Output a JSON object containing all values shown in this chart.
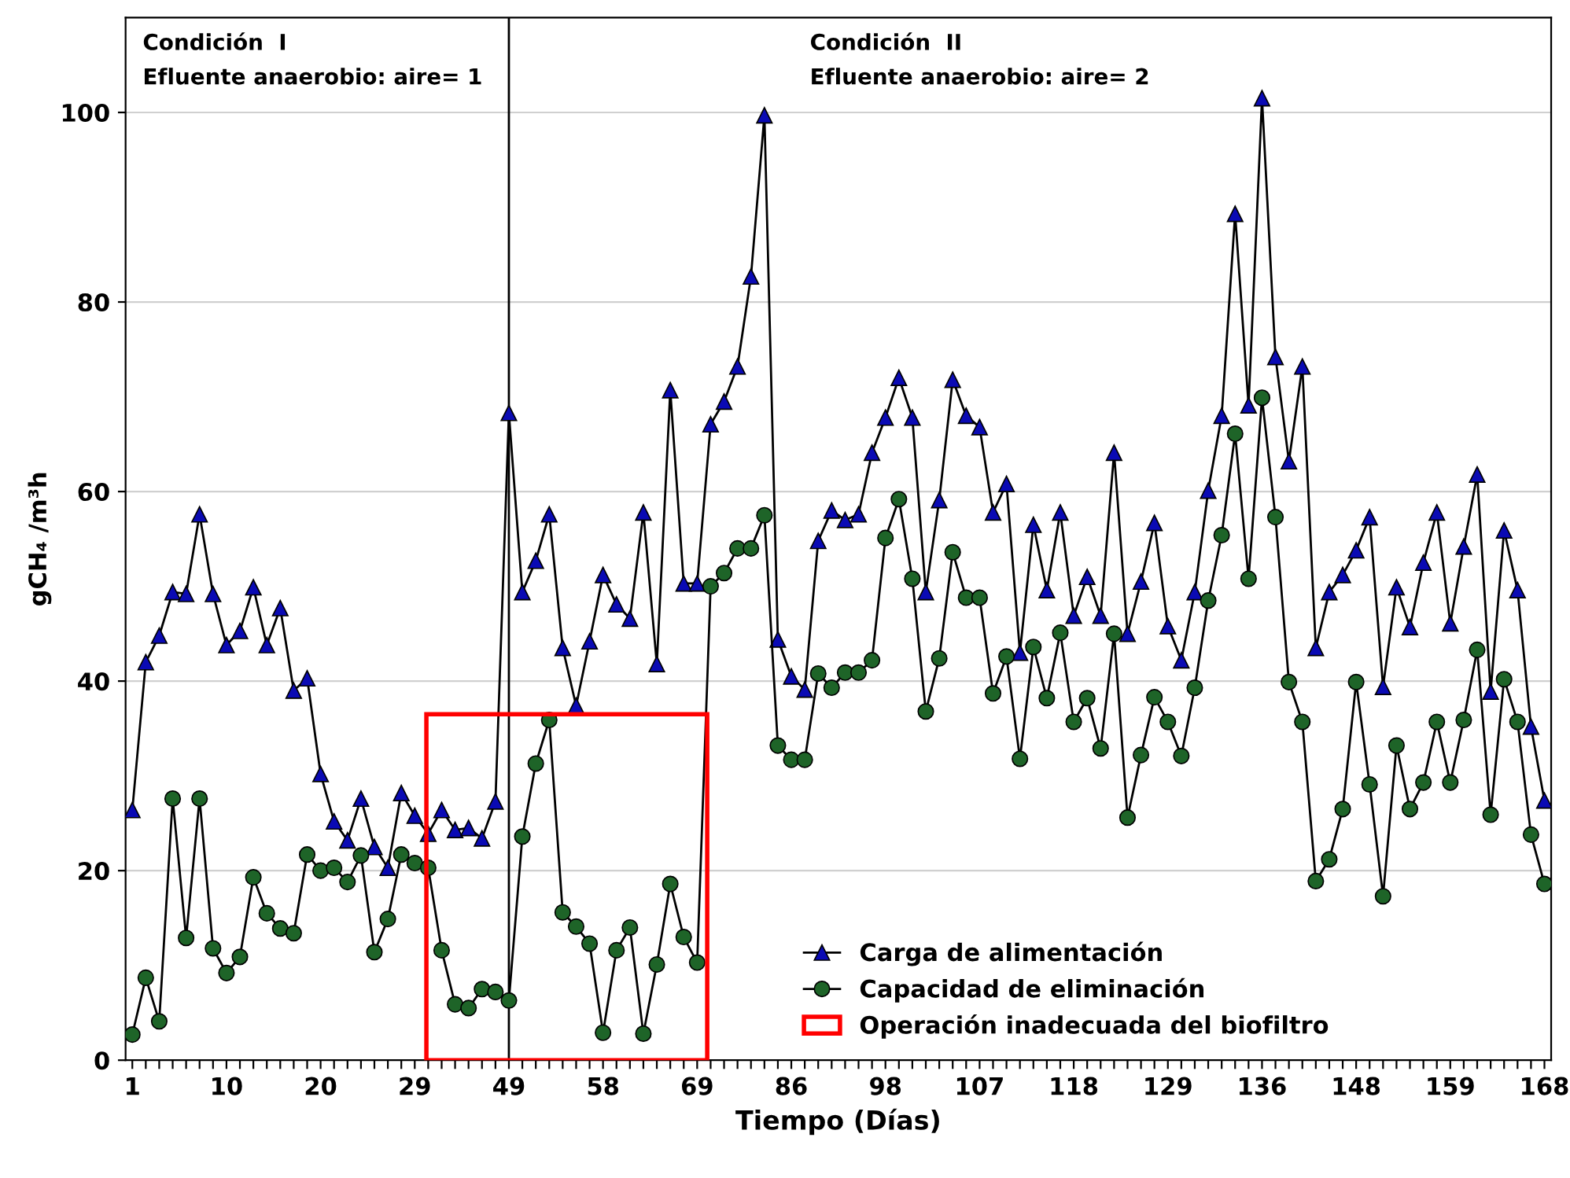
{
  "chart_data": {
    "type": "line",
    "xlabel": "Tiempo (Días)",
    "ylabel": "gCH₄ /m³h",
    "categories": [
      "1",
      null,
      null,
      null,
      null,
      null,
      null,
      "10",
      null,
      null,
      null,
      null,
      null,
      null,
      "20",
      null,
      null,
      null,
      null,
      null,
      null,
      "29",
      null,
      null,
      null,
      null,
      null,
      null,
      "49",
      null,
      null,
      null,
      null,
      null,
      null,
      "58",
      null,
      null,
      null,
      null,
      null,
      null,
      "69",
      null,
      null,
      null,
      null,
      null,
      null,
      "86",
      null,
      null,
      null,
      null,
      null,
      null,
      "98",
      null,
      null,
      null,
      null,
      null,
      null,
      "107",
      null,
      null,
      null,
      null,
      null,
      null,
      "118",
      null,
      null,
      null,
      null,
      null,
      null,
      "129",
      null,
      null,
      null,
      null,
      null,
      null,
      "136",
      null,
      null,
      null,
      null,
      null,
      null,
      "148",
      null,
      null,
      null,
      null,
      null,
      null,
      "159",
      null,
      null,
      null,
      null,
      null,
      null,
      "168"
    ],
    "series": [
      {
        "name": "Carga de alimentación",
        "color": "#0a0ab4",
        "marker": "triangle",
        "values": [
          26.4,
          42,
          44.8,
          49.4,
          49.2,
          57.6,
          49.2,
          43.8,
          45.3,
          49.9,
          43.8,
          47.7,
          39,
          40.3,
          30.2,
          25.2,
          23.2,
          27.6,
          22.5,
          20.3,
          28.2,
          25.8,
          23.9,
          26.4,
          24.3,
          24.5,
          23.4,
          27.3,
          68.3,
          49.4,
          52.7,
          57.6,
          43.5,
          37.4,
          44.2,
          51.2,
          48.1,
          46.6,
          57.8,
          41.8,
          70.7,
          50.3,
          50.3,
          67.1,
          69.5,
          73.2,
          82.7,
          99.7,
          44.4,
          40.5,
          39.1,
          54.8,
          58,
          57,
          57.6,
          64.1,
          67.8,
          72,
          67.8,
          49.4,
          59.1,
          71.8,
          68,
          66.8,
          57.8,
          60.8,
          43,
          56.5,
          49.6,
          57.8,
          46.9,
          51,
          46.9,
          64.1,
          45,
          50.5,
          56.7,
          45.8,
          42.2,
          49.4,
          60.1,
          68,
          89.3,
          69.1,
          101.5,
          74.2,
          63.2,
          73.2,
          43.5,
          49.4,
          51.2,
          53.8,
          57.3,
          39.4,
          49.9,
          45.7,
          52.5,
          57.8,
          46.1,
          54.2,
          61.8,
          38.9,
          55.9,
          49.6,
          35.2,
          27.4
        ]
      },
      {
        "name": "Capacidad de eliminación",
        "color": "#1e6428",
        "marker": "circle",
        "values": [
          2.7,
          8.7,
          4.1,
          27.6,
          12.9,
          27.6,
          11.8,
          9.2,
          10.9,
          19.3,
          15.5,
          13.9,
          13.4,
          21.7,
          20,
          20.3,
          18.8,
          21.6,
          11.4,
          14.9,
          21.7,
          20.8,
          20.3,
          11.6,
          5.9,
          5.5,
          7.5,
          7.2,
          6.3,
          23.6,
          31.3,
          35.9,
          15.6,
          14.1,
          12.3,
          2.9,
          11.6,
          14,
          2.8,
          10.1,
          18.6,
          13,
          10.3,
          50,
          51.4,
          54,
          54,
          57.5,
          33.2,
          31.7,
          31.7,
          40.8,
          39.3,
          40.9,
          40.9,
          42.2,
          55.1,
          59.2,
          50.8,
          36.8,
          42.4,
          53.6,
          48.8,
          48.8,
          38.7,
          42.6,
          31.8,
          43.6,
          38.2,
          45.1,
          35.7,
          38.2,
          32.9,
          45,
          25.6,
          32.2,
          38.3,
          35.7,
          32.1,
          39.3,
          48.5,
          55.4,
          66.1,
          50.8,
          69.9,
          57.3,
          39.9,
          35.7,
          18.9,
          21.2,
          26.5,
          39.9,
          29.1,
          17.3,
          33.2,
          26.5,
          29.3,
          35.7,
          29.3,
          35.9,
          43.3,
          25.9,
          40.2,
          35.7,
          23.8,
          18.6
        ]
      }
    ],
    "ylim": [
      0,
      110
    ],
    "yticks": [
      0,
      20,
      40,
      60,
      80,
      100
    ],
    "grid": "y",
    "legend": "bottom",
    "ref_lines": [
      {
        "axis": "x",
        "value": "49",
        "color": "#000000"
      }
    ],
    "annotations": [
      "Condición  I\nEfluente anaerobio: aire= 1",
      "Condición  II\nEfluente anaerobio: aire= 2",
      "Operación inadecuada del biofiltro"
    ]
  }
}
